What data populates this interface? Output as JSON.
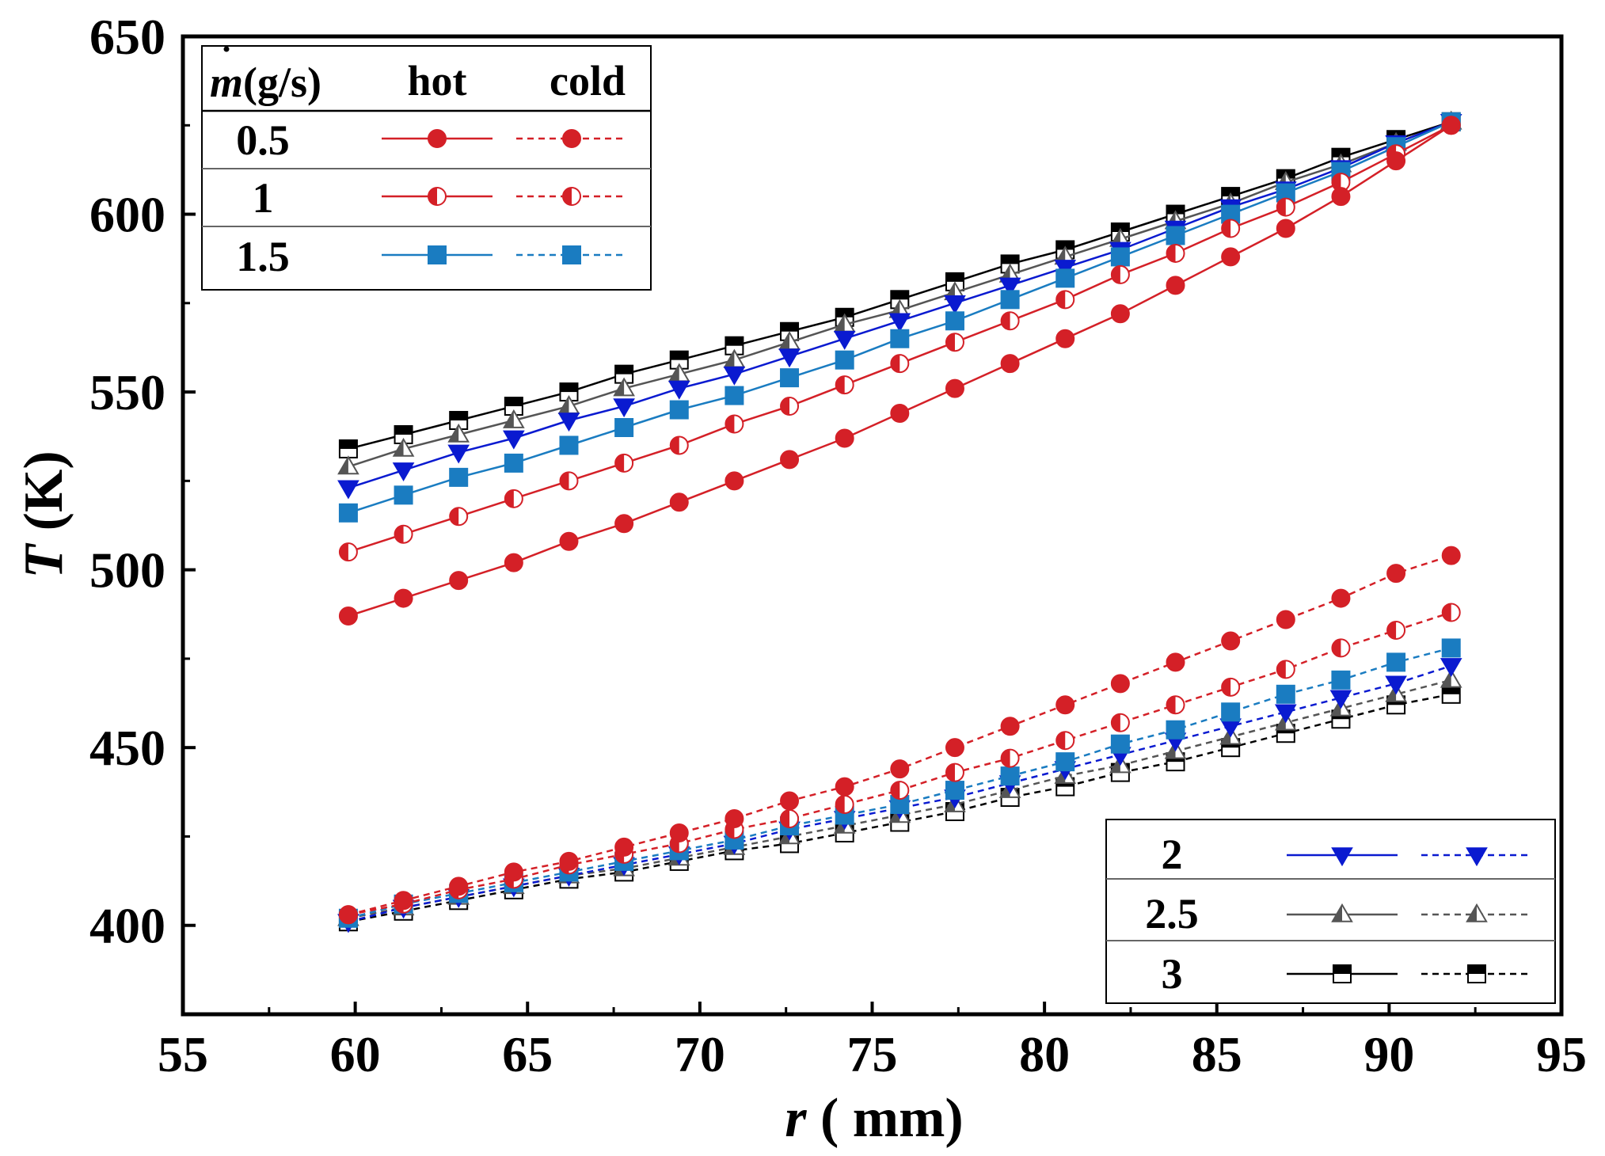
{
  "chart_data": {
    "type": "line",
    "xlabel_var": "r",
    "xlabel_unit": " ( mm)",
    "ylabel_var": "T",
    "ylabel_unit": " (K)",
    "xlim": [
      55,
      95
    ],
    "ylim": [
      375,
      650
    ],
    "xticks": [
      55,
      60,
      65,
      70,
      75,
      80,
      85,
      90,
      95
    ],
    "yticks": [
      400,
      450,
      500,
      550,
      600,
      650
    ],
    "x": [
      59.8,
      61.4,
      63.0,
      64.6,
      66.2,
      67.8,
      69.4,
      71.0,
      72.6,
      74.2,
      75.8,
      77.4,
      79.0,
      80.6,
      82.2,
      83.8,
      85.4,
      87.0,
      88.6,
      90.2,
      91.8
    ],
    "series": [
      {
        "name": "0.5",
        "stream": "hot",
        "marker": "circle-filled",
        "color": "#d42027",
        "values": [
          487,
          492,
          497,
          502,
          508,
          513,
          519,
          525,
          531,
          537,
          544,
          551,
          558,
          565,
          572,
          580,
          588,
          596,
          605,
          615,
          625
        ]
      },
      {
        "name": "1",
        "stream": "hot",
        "marker": "circle-half",
        "color": "#d42027",
        "values": [
          505,
          510,
          515,
          520,
          525,
          530,
          535,
          541,
          546,
          552,
          558,
          564,
          570,
          576,
          583,
          589,
          596,
          602,
          609,
          617,
          625
        ]
      },
      {
        "name": "1.5",
        "stream": "hot",
        "marker": "square-filled",
        "color": "#1a7cc1",
        "values": [
          516,
          521,
          526,
          530,
          535,
          540,
          545,
          549,
          554,
          559,
          565,
          570,
          576,
          582,
          588,
          594,
          600,
          606,
          612,
          619,
          626
        ]
      },
      {
        "name": "2",
        "stream": "hot",
        "marker": "triangle-down-filled",
        "color": "#0a1ad0",
        "values": [
          523,
          528,
          533,
          537,
          542,
          546,
          551,
          555,
          560,
          565,
          570,
          575,
          580,
          585,
          590,
          596,
          602,
          607,
          613,
          620,
          626
        ]
      },
      {
        "name": "2.5",
        "stream": "hot",
        "marker": "triangle-half",
        "color": "#555555",
        "values": [
          529,
          534,
          538,
          542,
          546,
          551,
          555,
          559,
          564,
          569,
          573,
          578,
          583,
          588,
          593,
          598,
          603,
          609,
          614,
          620,
          626
        ]
      },
      {
        "name": "3",
        "stream": "hot",
        "marker": "square-half",
        "color": "#000000",
        "values": [
          534,
          538,
          542,
          546,
          550,
          555,
          559,
          563,
          567,
          571,
          576,
          581,
          586,
          590,
          595,
          600,
          605,
          610,
          616,
          621,
          626
        ]
      },
      {
        "name": "0.5",
        "stream": "cold",
        "marker": "circle-filled",
        "color": "#d42027",
        "values": [
          403,
          407,
          411,
          415,
          418,
          422,
          426,
          430,
          435,
          439,
          444,
          450,
          456,
          462,
          468,
          474,
          480,
          486,
          492,
          499,
          504
        ]
      },
      {
        "name": "1",
        "stream": "cold",
        "marker": "circle-half",
        "color": "#d42027",
        "values": [
          403,
          406,
          410,
          413,
          417,
          420,
          423,
          427,
          430,
          434,
          438,
          443,
          447,
          452,
          457,
          462,
          467,
          472,
          478,
          483,
          488
        ]
      },
      {
        "name": "1.5",
        "stream": "cold",
        "marker": "square-filled",
        "color": "#1a7cc1",
        "values": [
          402,
          406,
          409,
          412,
          415,
          418,
          421,
          424,
          428,
          431,
          434,
          438,
          442,
          446,
          451,
          455,
          460,
          465,
          469,
          474,
          478
        ]
      },
      {
        "name": "2",
        "stream": "cold",
        "marker": "triangle-down-filled",
        "color": "#0a1ad0",
        "values": [
          401,
          405,
          408,
          411,
          414,
          417,
          420,
          423,
          427,
          430,
          433,
          436,
          440,
          444,
          448,
          452,
          456,
          460,
          464,
          468,
          473
        ]
      },
      {
        "name": "2.5",
        "stream": "cold",
        "marker": "triangle-half",
        "color": "#555555",
        "values": [
          402,
          405,
          408,
          411,
          414,
          416,
          419,
          422,
          425,
          428,
          431,
          434,
          438,
          442,
          445,
          449,
          453,
          457,
          461,
          465,
          469
        ]
      },
      {
        "name": "3",
        "stream": "cold",
        "marker": "square-half",
        "color": "#000000",
        "values": [
          401,
          404,
          407,
          410,
          413,
          415,
          418,
          421,
          423,
          426,
          429,
          432,
          436,
          439,
          443,
          446,
          450,
          454,
          458,
          462,
          465
        ]
      }
    ],
    "legend_top": {
      "header_var": "m",
      "header_unit": "(g/s)",
      "hot_label": "hot",
      "cold_label": "cold",
      "rows": [
        "0.5",
        "1",
        "1.5"
      ]
    },
    "legend_bottom": {
      "rows": [
        "2",
        "2.5",
        "3"
      ]
    }
  }
}
